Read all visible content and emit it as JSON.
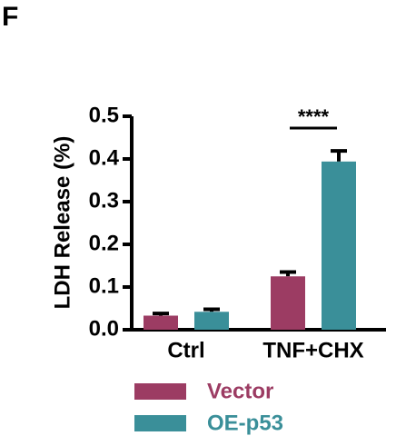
{
  "chart_data": {
    "type": "bar",
    "panel_label": "F",
    "ylabel": "LDH Release (%)",
    "categories": [
      "Ctrl",
      "TNF+CHX"
    ],
    "series": [
      {
        "name": "Vector",
        "color": "#9c3c63",
        "values": [
          0.033,
          0.125
        ],
        "errors": [
          0.005,
          0.01
        ]
      },
      {
        "name": "OE-p53",
        "color": "#3a8f99",
        "values": [
          0.042,
          0.394
        ],
        "errors": [
          0.006,
          0.025
        ]
      }
    ],
    "ylim": [
      0,
      0.5
    ],
    "yticks": [
      {
        "value": 0,
        "label": "0.0"
      },
      0.1,
      0.2,
      0.3,
      0.4,
      0.5
    ],
    "annotation": "****"
  }
}
